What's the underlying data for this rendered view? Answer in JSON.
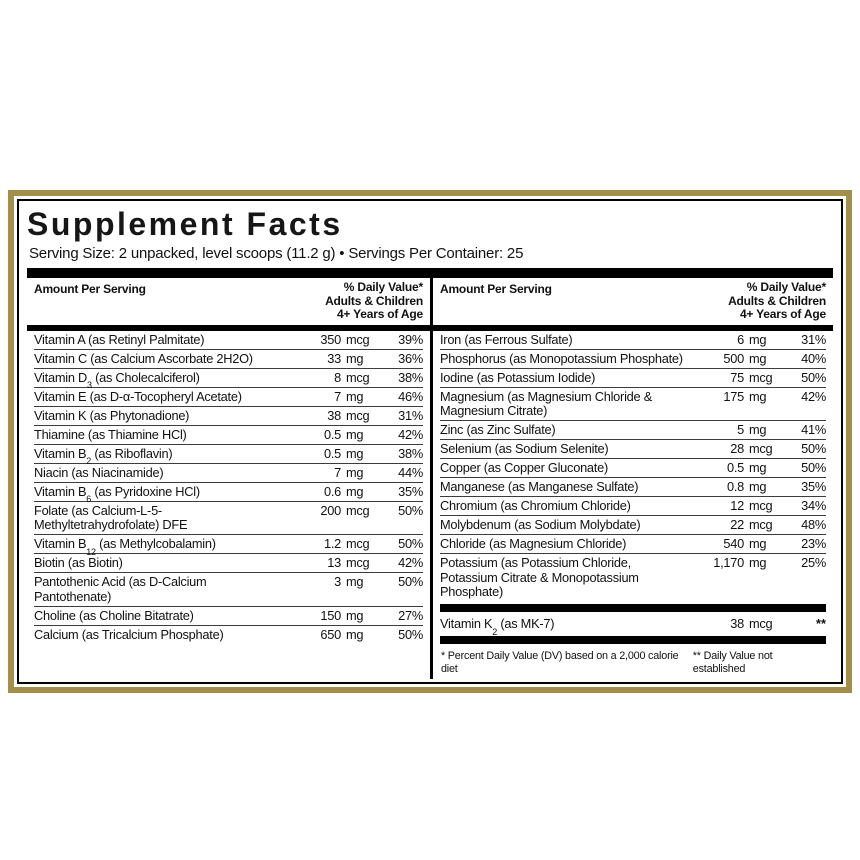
{
  "label": {
    "title": "Supplement Facts",
    "serving_line": "Serving Size: 2 unpacked, level scoops (11.2 g)  •  Servings Per Container: 25",
    "colors": {
      "border_gold": "#a38e4c",
      "bar_black": "#000000",
      "text": "#111111"
    },
    "column_header": {
      "amount_per_serving": "Amount Per Serving",
      "daily_value_lines": [
        "% Daily Value*",
        "Adults & Children",
        "4+ Years of Age"
      ]
    },
    "left_rows": [
      {
        "name": [
          "Vitamin A (as Retinyl Palmitate)"
        ],
        "amount": "350",
        "unit": "mcg",
        "dv": "39%"
      },
      {
        "name": [
          "Vitamin C (as Calcium Ascorbate 2H2O)"
        ],
        "amount": "33",
        "unit": "mg",
        "dv": "36%"
      },
      {
        "name": [
          "Vitamin D",
          {
            "sub": "3"
          },
          " (as Cholecalciferol)"
        ],
        "amount": "8",
        "unit": "mcg",
        "dv": "38%"
      },
      {
        "name": [
          "Vitamin E (as D-α-Tocopheryl Acetate)"
        ],
        "amount": "7",
        "unit": "mg",
        "dv": "46%"
      },
      {
        "name": [
          "Vitamin K (as Phytonadione)"
        ],
        "amount": "38",
        "unit": "mcg",
        "dv": "31%"
      },
      {
        "name": [
          "Thiamine (as Thiamine HCl)"
        ],
        "amount": "0.5",
        "unit": "mg",
        "dv": "42%"
      },
      {
        "name": [
          "Vitamin B",
          {
            "sub": "2"
          },
          " (as Riboflavin)"
        ],
        "amount": "0.5",
        "unit": "mg",
        "dv": "38%"
      },
      {
        "name": [
          "Niacin (as Niacinamide)"
        ],
        "amount": "7",
        "unit": "mg",
        "dv": "44%"
      },
      {
        "name": [
          "Vitamin B",
          {
            "sub": "6"
          },
          " (as Pyridoxine HCl)"
        ],
        "amount": "0.6",
        "unit": "mg",
        "dv": "35%"
      },
      {
        "name": [
          "Folate (as Calcium-L-5-Methyltetrahydrofolate) DFE"
        ],
        "amount": "200",
        "unit": "mcg",
        "dv": "50%"
      },
      {
        "name": [
          "Vitamin B",
          {
            "sub": "12"
          },
          " (as Methylcobalamin)"
        ],
        "amount": "1.2",
        "unit": "mcg",
        "dv": "50%"
      },
      {
        "name": [
          "Biotin (as Biotin)"
        ],
        "amount": "13",
        "unit": "mcg",
        "dv": "42%"
      },
      {
        "name": [
          "Pantothenic Acid (as D-Calcium Pantothenate)"
        ],
        "amount": "3",
        "unit": "mg",
        "dv": "50%"
      },
      {
        "name": [
          "Choline (as Choline Bitatrate)"
        ],
        "amount": "150",
        "unit": "mg",
        "dv": "27%"
      },
      {
        "name": [
          "Calcium (as Tricalcium Phosphate)"
        ],
        "amount": "650",
        "unit": "mg",
        "dv": "50%"
      }
    ],
    "right_rows": [
      {
        "name": [
          "Iron (as Ferrous Sulfate)"
        ],
        "amount": "6",
        "unit": "mg",
        "dv": "31%"
      },
      {
        "name": [
          "Phosphorus (as Monopotassium Phosphate)"
        ],
        "amount": "500",
        "unit": "mg",
        "dv": "40%"
      },
      {
        "name": [
          "Iodine (as Potassium Iodide)"
        ],
        "amount": "75",
        "unit": "mcg",
        "dv": "50%"
      },
      {
        "name": [
          "Magnesium (as Magnesium Chloride & Magnesium Citrate)"
        ],
        "amount": "175",
        "unit": "mg",
        "dv": "42%"
      },
      {
        "name": [
          "Zinc (as Zinc Sulfate)"
        ],
        "amount": "5",
        "unit": "mg",
        "dv": "41%"
      },
      {
        "name": [
          "Selenium (as Sodium Selenite)"
        ],
        "amount": "28",
        "unit": "mcg",
        "dv": "50%"
      },
      {
        "name": [
          "Copper (as Copper Gluconate)"
        ],
        "amount": "0.5",
        "unit": "mg",
        "dv": "50%"
      },
      {
        "name": [
          "Manganese (as Manganese Sulfate)"
        ],
        "amount": "0.8",
        "unit": "mg",
        "dv": "35%"
      },
      {
        "name": [
          "Chromium (as Chromium Chloride)"
        ],
        "amount": "12",
        "unit": "mcg",
        "dv": "34%"
      },
      {
        "name": [
          "Molybdenum (as Sodium Molybdate)"
        ],
        "amount": "22",
        "unit": "mcg",
        "dv": "48%"
      },
      {
        "name": [
          "Chloride (as Magnesium Chloride)"
        ],
        "amount": "540",
        "unit": "mg",
        "dv": "23%"
      },
      {
        "name": [
          "Potassium (as Potassium Chloride, Potassium Citrate & Monopotassium Phosphate)"
        ],
        "amount": "1,170",
        "unit": "mg",
        "dv": "25%"
      }
    ],
    "k2_rows": [
      {
        "name": [
          "Vitamin K",
          {
            "sub": "2"
          },
          " (as MK-7)"
        ],
        "amount": "38",
        "unit": "mcg",
        "dv": "**"
      }
    ],
    "footnotes": {
      "percent_dv": "* Percent Daily Value (DV) based on a 2,000 calorie diet",
      "not_established": "** Daily Value not established"
    }
  }
}
